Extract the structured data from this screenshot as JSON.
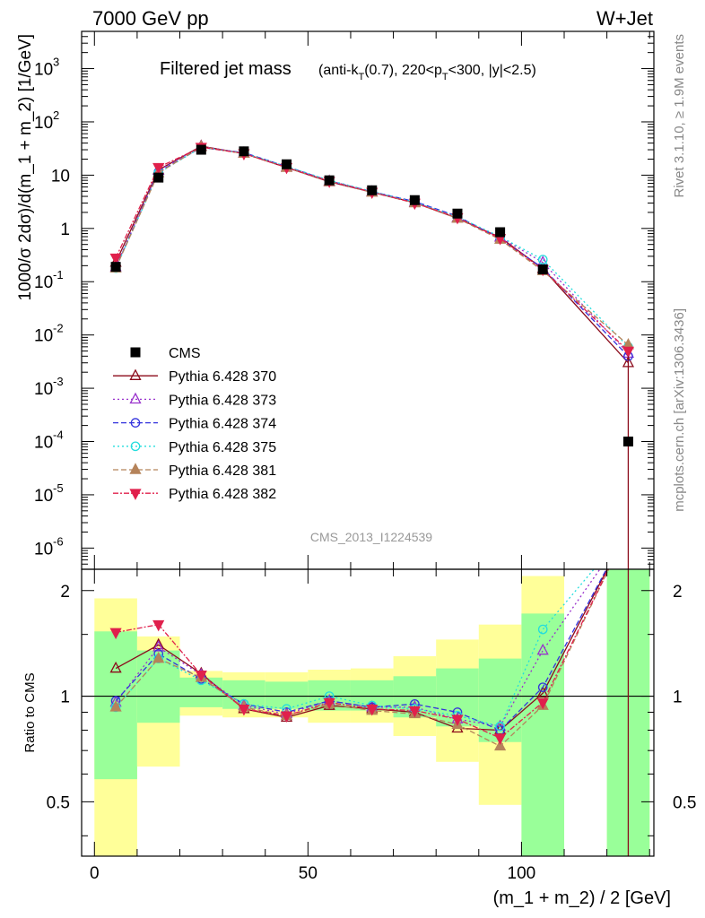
{
  "header": {
    "left": "7000 GeV pp",
    "right": "W+Jet"
  },
  "side_labels": {
    "rivet": "Rivet 3.1.10, ≥ 1.9M events",
    "mcplots": "mcplots.cern.ch [arXiv:1306.3436]"
  },
  "chart_data": {
    "type": "line",
    "title": "Filtered jet mass",
    "subtitle_parts": [
      "(anti-k",
      "T",
      "(0.7), 220<p",
      "T",
      "<300, |y|<2.5)"
    ],
    "xlabel": "(m_1 + m_2) / 2 [GeV]",
    "ylabel": "1000/σ 2dσ)/d(m_1 + m_2) [1/GeV]",
    "ratio_ylabel": "Ratio to CMS",
    "watermark": "CMS_2013_I1224539",
    "xlim": [
      -3,
      131
    ],
    "ylim": [
      4e-07,
      5000
    ],
    "ratio_ylim": [
      0.35,
      2.3
    ],
    "y_scale": "log",
    "x_ticks": [
      0,
      50,
      100
    ],
    "y_ticks": [
      {
        "exp": "-6"
      },
      {
        "exp": "-5"
      },
      {
        "exp": "-4"
      },
      {
        "exp": "-3"
      },
      {
        "exp": "-2"
      },
      {
        "exp": "-1"
      },
      {
        "plain": "1"
      },
      {
        "plain": "10"
      },
      {
        "exp": "2"
      },
      {
        "exp": "3"
      }
    ],
    "ratio_ticks": [
      "0.5",
      "1",
      "2"
    ],
    "x": [
      5,
      15,
      25,
      35,
      45,
      55,
      65,
      75,
      85,
      95,
      105,
      125
    ],
    "bin_edges": [
      0,
      10,
      20,
      30,
      40,
      50,
      60,
      70,
      80,
      90,
      100,
      110,
      120,
      130
    ],
    "data": {
      "name": "CMS",
      "values": [
        0.19,
        9.0,
        30.0,
        28.0,
        16.0,
        8.0,
        5.2,
        3.4,
        1.9,
        0.85,
        0.17,
        0.0001
      ]
    },
    "bands": [
      {
        "x1": 0,
        "x2": 10,
        "yellow": [
          0.35,
          1.9
        ],
        "green": [
          0.58,
          1.53
        ]
      },
      {
        "x1": 10,
        "x2": 20,
        "yellow": [
          0.63,
          1.48
        ],
        "green": [
          0.84,
          1.35
        ]
      },
      {
        "x1": 20,
        "x2": 30,
        "yellow": [
          0.88,
          1.18
        ],
        "green": [
          0.93,
          1.13
        ]
      },
      {
        "x1": 30,
        "x2": 40,
        "yellow": [
          0.87,
          1.17
        ],
        "green": [
          0.92,
          1.11
        ]
      },
      {
        "x1": 40,
        "x2": 50,
        "yellow": [
          0.87,
          1.17
        ],
        "green": [
          0.92,
          1.1
        ]
      },
      {
        "x1": 50,
        "x2": 60,
        "yellow": [
          0.84,
          1.19
        ],
        "green": [
          0.91,
          1.11
        ]
      },
      {
        "x1": 60,
        "x2": 70,
        "yellow": [
          0.84,
          1.2
        ],
        "green": [
          0.91,
          1.11
        ]
      },
      {
        "x1": 70,
        "x2": 80,
        "yellow": [
          0.77,
          1.3
        ],
        "green": [
          0.87,
          1.14
        ]
      },
      {
        "x1": 80,
        "x2": 90,
        "yellow": [
          0.65,
          1.45
        ],
        "green": [
          0.82,
          1.2
        ]
      },
      {
        "x1": 90,
        "x2": 100,
        "yellow": [
          0.49,
          1.6
        ],
        "green": [
          0.74,
          1.28
        ]
      },
      {
        "x1": 100,
        "x2": 110,
        "yellow": [
          0.35,
          2.2
        ],
        "green": [
          0.35,
          1.72
        ]
      },
      {
        "x1": 120,
        "x2": 130,
        "yellow": [
          0.35,
          2.3
        ],
        "green": [
          0.35,
          2.3
        ]
      }
    ],
    "series": [
      {
        "name": "Pythia 6.428 370",
        "color": "#8b0a1a",
        "marker": "triangle-open",
        "dash": "",
        "values": [
          0.23,
          12.5,
          35.0,
          25.5,
          13.9,
          7.5,
          4.8,
          3.05,
          1.55,
          0.68,
          0.175,
          0.003
        ],
        "ratio": [
          1.2,
          1.4,
          1.16,
          0.92,
          0.87,
          0.94,
          0.92,
          0.9,
          0.81,
          0.8,
          1.02,
          3.0
        ]
      },
      {
        "name": "Pythia 6.428 373",
        "color": "#9932cc",
        "marker": "triangle-open",
        "dash": "2,3",
        "values": [
          0.19,
          12.2,
          34.5,
          26.0,
          14.2,
          7.7,
          4.85,
          3.1,
          1.6,
          0.68,
          0.23,
          0.0045
        ],
        "ratio": [
          0.96,
          1.38,
          1.15,
          0.94,
          0.89,
          0.97,
          0.93,
          0.93,
          0.86,
          0.82,
          1.35,
          3.0
        ]
      },
      {
        "name": "Pythia 6.428 374",
        "color": "#3333dd",
        "marker": "circle-open",
        "dash": "6,3",
        "values": [
          0.185,
          11.5,
          33.0,
          26.5,
          14.5,
          7.8,
          4.9,
          3.2,
          1.7,
          0.64,
          0.18,
          0.004
        ],
        "ratio": [
          0.97,
          1.32,
          1.12,
          0.95,
          0.9,
          0.97,
          0.93,
          0.95,
          0.9,
          0.8,
          1.06,
          3.0
        ]
      },
      {
        "name": "Pythia 6.428 375",
        "color": "#22dddd",
        "marker": "circle-open",
        "dash": "2,3",
        "values": [
          0.18,
          11.0,
          33.0,
          26.0,
          14.6,
          8.0,
          4.95,
          3.1,
          1.65,
          0.7,
          0.26,
          0.006
        ],
        "ratio": [
          0.93,
          1.28,
          1.11,
          0.95,
          0.92,
          1.0,
          0.94,
          0.92,
          0.88,
          0.82,
          1.55,
          3.0
        ]
      },
      {
        "name": "Pythia 6.428 381",
        "color": "#b5835a",
        "marker": "triangle-filled",
        "dash": "6,3",
        "values": [
          0.18,
          11.0,
          34.0,
          25.5,
          13.9,
          7.6,
          4.75,
          3.0,
          1.55,
          0.62,
          0.16,
          0.0065
        ],
        "ratio": [
          0.93,
          1.28,
          1.13,
          0.93,
          0.88,
          0.95,
          0.91,
          0.89,
          0.83,
          0.72,
          0.94,
          3.0
        ]
      },
      {
        "name": "Pythia 6.428 382",
        "color": "#e0204c",
        "marker": "triangle-down-filled",
        "dash": "6,2,2,2",
        "values": [
          0.28,
          14.0,
          33.5,
          25.5,
          14.0,
          7.7,
          4.8,
          3.0,
          1.6,
          0.65,
          0.17,
          0.005
        ],
        "ratio": [
          1.52,
          1.6,
          1.15,
          0.92,
          0.88,
          0.96,
          0.92,
          0.91,
          0.86,
          0.76,
          0.96,
          3.0
        ]
      }
    ]
  }
}
